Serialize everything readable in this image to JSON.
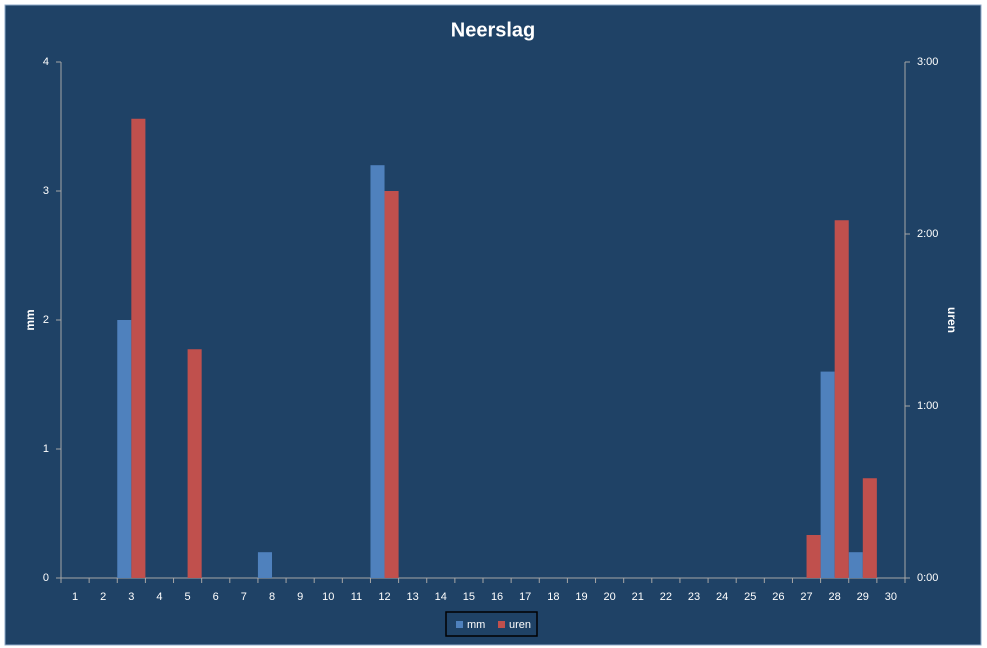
{
  "chart_data": {
    "type": "bar",
    "title": "Neerslag",
    "categories": [
      "1",
      "2",
      "3",
      "4",
      "5",
      "6",
      "7",
      "8",
      "9",
      "10",
      "11",
      "12",
      "13",
      "14",
      "15",
      "16",
      "17",
      "18",
      "19",
      "20",
      "21",
      "22",
      "23",
      "24",
      "25",
      "26",
      "27",
      "28",
      "29",
      "30"
    ],
    "series": [
      {
        "name": "mm",
        "color": "#4f81bd",
        "values": [
          0,
          0,
          2,
          0,
          0,
          0,
          0,
          0.2,
          0,
          0,
          0,
          3.2,
          0,
          0,
          0,
          0,
          0,
          0,
          0,
          0,
          0,
          0,
          0,
          0,
          0,
          0,
          0,
          1.6,
          0.2,
          0
        ]
      },
      {
        "name": "uren",
        "color": "#c0504d",
        "axis": "y2",
        "values": [
          0,
          0,
          2.67,
          0,
          1.33,
          0,
          0,
          0,
          0,
          0,
          0,
          2.25,
          0,
          0,
          0,
          0,
          0,
          0,
          0,
          0,
          0,
          0,
          0,
          0,
          0,
          0,
          0.25,
          2.08,
          0.58,
          0
        ]
      }
    ],
    "y_label": "mm",
    "y2_label": "uren",
    "ylim": [
      0,
      4
    ],
    "yticks": [
      0,
      1,
      2,
      3,
      4
    ],
    "y2lim": [
      0,
      3
    ],
    "y2ticks": [
      {
        "value": 0,
        "label": "0:00"
      },
      {
        "value": 1,
        "label": "1:00"
      },
      {
        "value": 2,
        "label": "2:00"
      },
      {
        "value": 3,
        "label": "3:00"
      }
    ],
    "grid": false,
    "legend": "bottom"
  }
}
